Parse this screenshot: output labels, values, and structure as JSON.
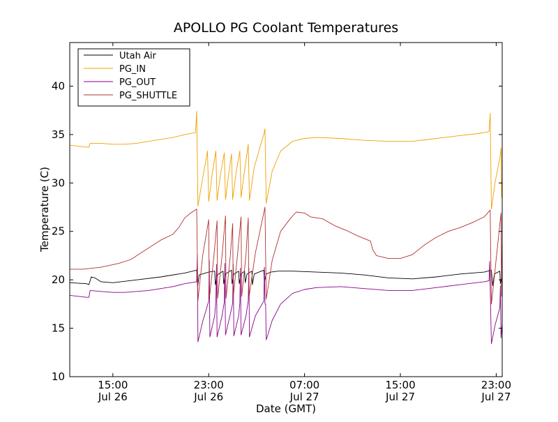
{
  "chart_data": {
    "type": "line",
    "title": "APOLLO PG Coolant Temperatures",
    "xlabel": "Date (GMT)",
    "ylabel": "Temperature (C)",
    "x_unit": "hours since Jul 26 00:00 GMT",
    "xlim": [
      11.4,
      47.5
    ],
    "ylim": [
      10,
      44.5
    ],
    "grid": false,
    "legend_position": "top-left",
    "x_ticks": [
      {
        "value": 15,
        "time": "15:00",
        "date": "Jul 26"
      },
      {
        "value": 23,
        "time": "23:00",
        "date": "Jul 26"
      },
      {
        "value": 31,
        "time": "07:00",
        "date": "Jul 27"
      },
      {
        "value": 39,
        "time": "15:00",
        "date": "Jul 27"
      },
      {
        "value": 47,
        "time": "23:00",
        "date": "Jul 27"
      }
    ],
    "y_ticks": [
      10,
      15,
      20,
      25,
      30,
      35,
      40
    ],
    "series": [
      {
        "name": "Utah Air",
        "color": "#000000",
        "points": [
          [
            11.4,
            19.7
          ],
          [
            12.8,
            19.6
          ],
          [
            13.0,
            19.5
          ],
          [
            13.2,
            20.3
          ],
          [
            13.5,
            20.2
          ],
          [
            14.0,
            19.8
          ],
          [
            15.0,
            19.7
          ],
          [
            17.0,
            20.0
          ],
          [
            19.0,
            20.3
          ],
          [
            21.0,
            20.7
          ],
          [
            22.0,
            21.0
          ],
          [
            22.08,
            19.3
          ],
          [
            22.2,
            20.5
          ],
          [
            23.0,
            20.8
          ],
          [
            23.5,
            20.9
          ],
          [
            23.55,
            19.5
          ],
          [
            23.7,
            20.5
          ],
          [
            24.2,
            20.9
          ],
          [
            24.25,
            19.6
          ],
          [
            24.4,
            20.6
          ],
          [
            24.9,
            21.0
          ],
          [
            24.95,
            19.6
          ],
          [
            25.1,
            20.6
          ],
          [
            25.5,
            20.9
          ],
          [
            25.55,
            19.6
          ],
          [
            25.7,
            20.6
          ],
          [
            26.0,
            20.9
          ],
          [
            26.05,
            19.7
          ],
          [
            26.2,
            20.6
          ],
          [
            26.6,
            20.9
          ],
          [
            26.65,
            19.5
          ],
          [
            26.8,
            20.6
          ],
          [
            27.6,
            21.0
          ],
          [
            27.65,
            19.8
          ],
          [
            27.8,
            20.6
          ],
          [
            28.2,
            20.8
          ],
          [
            28.8,
            20.9
          ],
          [
            29.0,
            20.9
          ],
          [
            30.0,
            20.9
          ],
          [
            32.0,
            20.8
          ],
          [
            34.0,
            20.7
          ],
          [
            36.0,
            20.5
          ],
          [
            38.0,
            20.2
          ],
          [
            40.0,
            20.1
          ],
          [
            42.0,
            20.3
          ],
          [
            44.0,
            20.6
          ],
          [
            46.0,
            20.8
          ],
          [
            46.6,
            21.0
          ],
          [
            46.7,
            19.4
          ],
          [
            46.85,
            20.6
          ],
          [
            47.3,
            20.9
          ],
          [
            47.35,
            19.6
          ],
          [
            47.5,
            20.6
          ]
        ]
      },
      {
        "name": "PG_IN",
        "color": "#f0a000",
        "points": [
          [
            11.4,
            33.9
          ],
          [
            12.8,
            33.7
          ],
          [
            13.0,
            33.7
          ],
          [
            13.1,
            34.1
          ],
          [
            14.0,
            34.1
          ],
          [
            15.0,
            34.0
          ],
          [
            16.0,
            34.0
          ],
          [
            17.0,
            34.1
          ],
          [
            18.0,
            34.3
          ],
          [
            20.0,
            34.7
          ],
          [
            21.0,
            35.0
          ],
          [
            21.9,
            35.2
          ],
          [
            22.0,
            37.4
          ],
          [
            22.1,
            27.6
          ],
          [
            22.5,
            30.5
          ],
          [
            22.9,
            33.3
          ],
          [
            23.0,
            28.1
          ],
          [
            23.3,
            31.0
          ],
          [
            23.6,
            33.3
          ],
          [
            23.7,
            28.2
          ],
          [
            24.0,
            31.0
          ],
          [
            24.3,
            33.1
          ],
          [
            24.4,
            28.3
          ],
          [
            24.7,
            31.2
          ],
          [
            24.9,
            33.0
          ],
          [
            25.0,
            28.3
          ],
          [
            25.3,
            31.2
          ],
          [
            25.6,
            33.3
          ],
          [
            25.7,
            28.5
          ],
          [
            26.0,
            31.3
          ],
          [
            26.3,
            34.0
          ],
          [
            26.4,
            28.2
          ],
          [
            26.8,
            31.6
          ],
          [
            27.3,
            33.8
          ],
          [
            27.6,
            35.0
          ],
          [
            27.7,
            35.6
          ],
          [
            27.8,
            27.9
          ],
          [
            28.3,
            31.2
          ],
          [
            29.0,
            33.3
          ],
          [
            30.0,
            34.3
          ],
          [
            31.0,
            34.6
          ],
          [
            32.0,
            34.7
          ],
          [
            34.0,
            34.6
          ],
          [
            36.0,
            34.4
          ],
          [
            38.0,
            34.3
          ],
          [
            40.0,
            34.3
          ],
          [
            42.0,
            34.6
          ],
          [
            44.0,
            34.9
          ],
          [
            45.5,
            35.1
          ],
          [
            46.4,
            35.3
          ],
          [
            46.5,
            37.2
          ],
          [
            46.6,
            27.3
          ],
          [
            46.9,
            30.0
          ],
          [
            47.3,
            32.6
          ],
          [
            47.4,
            33.6
          ],
          [
            47.45,
            28.5
          ],
          [
            47.5,
            30.6
          ]
        ]
      },
      {
        "name": "PG_OUT",
        "color": "#880088",
        "points": [
          [
            11.4,
            18.4
          ],
          [
            12.8,
            18.2
          ],
          [
            13.0,
            18.2
          ],
          [
            13.1,
            18.9
          ],
          [
            14.0,
            18.8
          ],
          [
            15.0,
            18.7
          ],
          [
            16.0,
            18.7
          ],
          [
            18.0,
            18.9
          ],
          [
            20.0,
            19.3
          ],
          [
            21.0,
            19.6
          ],
          [
            22.0,
            19.8
          ],
          [
            22.05,
            22.6
          ],
          [
            22.1,
            13.6
          ],
          [
            22.5,
            15.7
          ],
          [
            23.0,
            17.8
          ],
          [
            23.05,
            22.0
          ],
          [
            23.1,
            14.1
          ],
          [
            23.5,
            16.3
          ],
          [
            23.6,
            17.8
          ],
          [
            23.65,
            21.6
          ],
          [
            23.7,
            14.1
          ],
          [
            24.1,
            16.2
          ],
          [
            24.3,
            17.7
          ],
          [
            24.35,
            21.7
          ],
          [
            24.4,
            14.3
          ],
          [
            24.8,
            16.4
          ],
          [
            25.0,
            17.6
          ],
          [
            25.05,
            21.6
          ],
          [
            25.1,
            14.2
          ],
          [
            25.5,
            16.3
          ],
          [
            25.6,
            17.6
          ],
          [
            25.65,
            21.2
          ],
          [
            25.7,
            14.3
          ],
          [
            26.1,
            16.2
          ],
          [
            26.3,
            17.8
          ],
          [
            26.35,
            21.2
          ],
          [
            26.4,
            14.1
          ],
          [
            26.9,
            16.3
          ],
          [
            27.6,
            17.8
          ],
          [
            27.65,
            21.3
          ],
          [
            27.7,
            17.5
          ],
          [
            27.75,
            17.5
          ],
          [
            27.8,
            13.8
          ],
          [
            28.3,
            15.8
          ],
          [
            29.0,
            17.5
          ],
          [
            30.0,
            18.6
          ],
          [
            31.0,
            19.0
          ],
          [
            32.0,
            19.2
          ],
          [
            34.0,
            19.3
          ],
          [
            36.0,
            19.1
          ],
          [
            38.0,
            18.9
          ],
          [
            40.0,
            18.9
          ],
          [
            42.0,
            19.2
          ],
          [
            44.0,
            19.5
          ],
          [
            46.0,
            19.8
          ],
          [
            46.4,
            19.9
          ],
          [
            46.45,
            21.9
          ],
          [
            46.6,
            13.4
          ],
          [
            46.9,
            15.3
          ],
          [
            47.3,
            17.1
          ],
          [
            47.35,
            19.4
          ],
          [
            47.4,
            14.0
          ],
          [
            47.5,
            15.5
          ]
        ]
      },
      {
        "name": "PG_SHUTTLE",
        "color": "#b03030",
        "points": [
          [
            11.4,
            21.1
          ],
          [
            12.5,
            21.1
          ],
          [
            14.0,
            21.3
          ],
          [
            15.5,
            21.7
          ],
          [
            16.5,
            22.1
          ],
          [
            18.0,
            23.3
          ],
          [
            19.0,
            24.1
          ],
          [
            20.0,
            24.7
          ],
          [
            20.5,
            25.4
          ],
          [
            21.0,
            26.4
          ],
          [
            21.5,
            26.9
          ],
          [
            22.0,
            27.3
          ],
          [
            22.1,
            17.9
          ],
          [
            22.5,
            22.5
          ],
          [
            23.0,
            26.2
          ],
          [
            23.05,
            18.0
          ],
          [
            23.4,
            22.0
          ],
          [
            23.7,
            26.1
          ],
          [
            23.75,
            18.1
          ],
          [
            24.1,
            22.3
          ],
          [
            24.4,
            26.6
          ],
          [
            24.45,
            18.1
          ],
          [
            24.8,
            22.4
          ],
          [
            25.0,
            25.8
          ],
          [
            25.05,
            18.2
          ],
          [
            25.4,
            22.5
          ],
          [
            25.7,
            26.5
          ],
          [
            25.75,
            18.3
          ],
          [
            26.1,
            22.4
          ],
          [
            26.3,
            26.4
          ],
          [
            26.35,
            18.1
          ],
          [
            26.9,
            22.8
          ],
          [
            27.7,
            27.5
          ],
          [
            27.8,
            18.0
          ],
          [
            28.3,
            22.0
          ],
          [
            29.0,
            25.0
          ],
          [
            29.8,
            26.3
          ],
          [
            30.3,
            27.0
          ],
          [
            31.0,
            26.9
          ],
          [
            31.5,
            26.5
          ],
          [
            32.5,
            26.3
          ],
          [
            33.5,
            25.6
          ],
          [
            34.5,
            25.1
          ],
          [
            35.5,
            24.5
          ],
          [
            36.5,
            24.0
          ],
          [
            36.7,
            23.1
          ],
          [
            37.0,
            22.5
          ],
          [
            38.0,
            22.2
          ],
          [
            39.0,
            22.2
          ],
          [
            40.0,
            22.6
          ],
          [
            41.0,
            23.6
          ],
          [
            42.0,
            24.4
          ],
          [
            43.0,
            25.0
          ],
          [
            44.0,
            25.4
          ],
          [
            45.0,
            25.9
          ],
          [
            46.0,
            26.5
          ],
          [
            46.5,
            27.2
          ],
          [
            46.6,
            17.5
          ],
          [
            46.9,
            21.0
          ],
          [
            47.4,
            26.9
          ],
          [
            47.45,
            18.3
          ],
          [
            47.5,
            24.4
          ]
        ]
      }
    ]
  }
}
